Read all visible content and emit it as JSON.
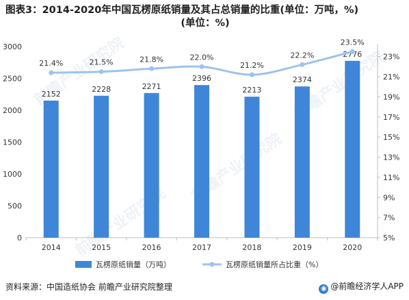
{
  "title": "图表3：2014-2020年中国瓦楞原纸销量及其占总销量的比重(单位：万吨，%)",
  "title_line2": "(单位：%)",
  "source": "资料来源：中国造纸协会 前瞻产业研究院整理",
  "brand": "@前瞻经济学人APP",
  "watermark": "前瞻产业研究院",
  "colors": {
    "bar": "#3f86d8",
    "line": "#9cc3ec",
    "axis": "#bfbfbf",
    "text": "#333333"
  },
  "chart_data": {
    "type": "bar",
    "categories": [
      "2014",
      "2015",
      "2016",
      "2017",
      "2018",
      "2019",
      "2020"
    ],
    "series": [
      {
        "name": "瓦楞原纸销量（万吨）",
        "type": "bar",
        "axis": "left",
        "values": [
          2152,
          2228,
          2271,
          2396,
          2213,
          2374,
          2776
        ],
        "labels": [
          "2152",
          "2228",
          "2271",
          "2396",
          "2213",
          "2374",
          "2776"
        ]
      },
      {
        "name": "瓦楞原纸销量所占比重（%）",
        "type": "line",
        "axis": "right",
        "values": [
          21.4,
          21.5,
          21.8,
          22.0,
          21.2,
          22.2,
          23.5
        ],
        "labels": [
          "21.4%",
          "21.5%",
          "21.8%",
          "22.0%",
          "21.2%",
          "22.2%",
          "23.5%"
        ]
      }
    ],
    "left_axis": {
      "ylim": [
        0,
        3000
      ],
      "ticks": [
        "0",
        "500",
        "1000",
        "1500",
        "2000",
        "2500",
        "3000"
      ]
    },
    "right_axis": {
      "ylim": [
        5,
        24
      ],
      "ticks": [
        "5%",
        "7%",
        "9%",
        "11%",
        "13%",
        "15%",
        "17%",
        "19%",
        "21%",
        "23%"
      ]
    },
    "legend": "bottom",
    "grid": false
  }
}
